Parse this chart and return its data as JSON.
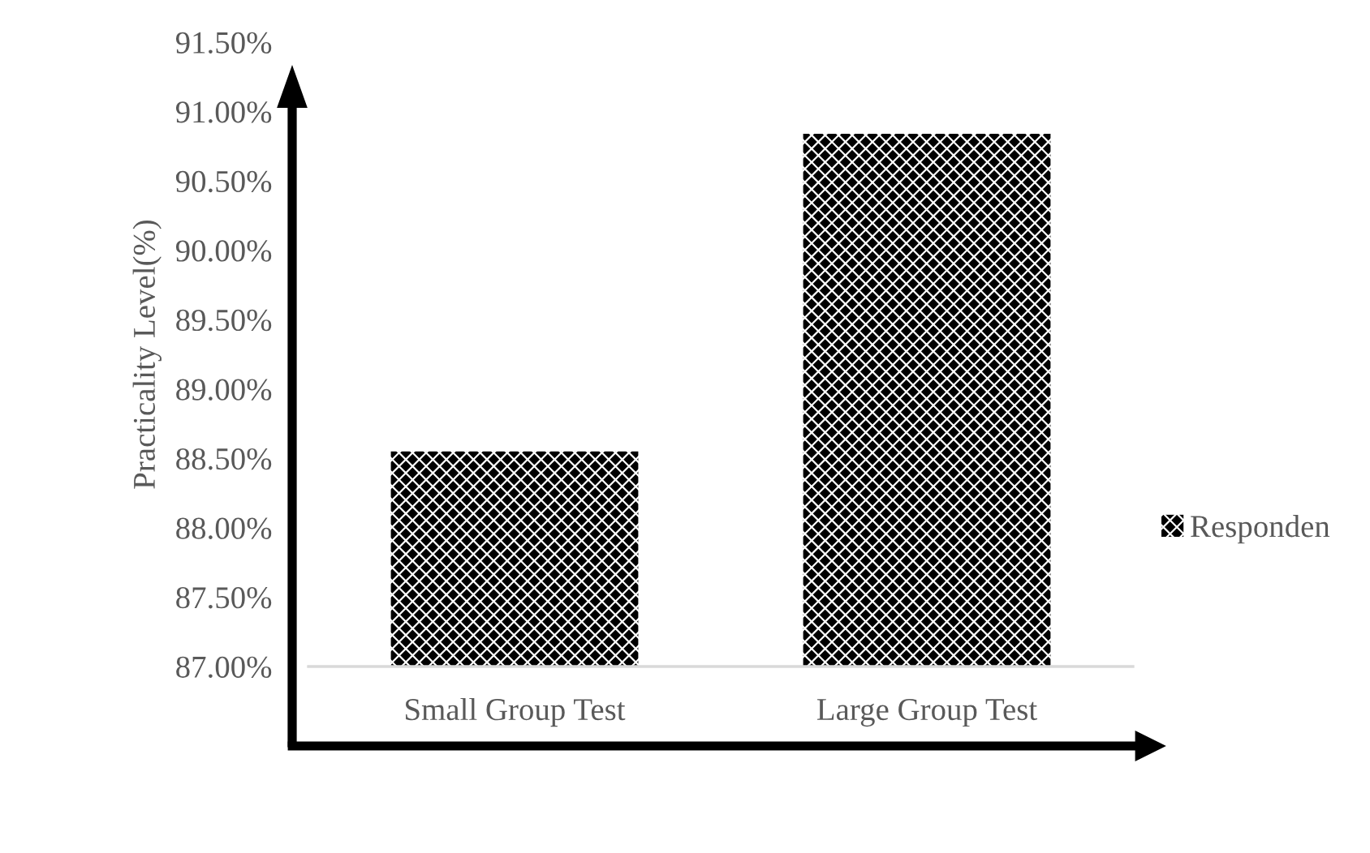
{
  "chart_data": {
    "type": "bar",
    "ylabel": "Practicality Level(%)",
    "categories": [
      "Small Group Test",
      "Large Group Test"
    ],
    "series": [
      {
        "name": "Responden",
        "color": "#000000",
        "values": [
          88.55,
          90.84
        ]
      }
    ],
    "ylim": [
      87,
      91.5
    ],
    "yticks": [
      {
        "value": 87,
        "label": "87.00%"
      },
      {
        "value": 87.5,
        "label": "87.50%"
      },
      {
        "value": 88,
        "label": "88.00%"
      },
      {
        "value": 88.5,
        "label": "88.50%"
      },
      {
        "value": 89,
        "label": "89.00%"
      },
      {
        "value": 89.5,
        "label": "89.50%"
      },
      {
        "value": 90,
        "label": "90.00%"
      },
      {
        "value": 90.5,
        "label": "90.50%"
      },
      {
        "value": 91,
        "label": "91.00%"
      },
      {
        "value": 91.5,
        "label": "91.50%"
      }
    ],
    "grid": false,
    "legend": "right"
  }
}
